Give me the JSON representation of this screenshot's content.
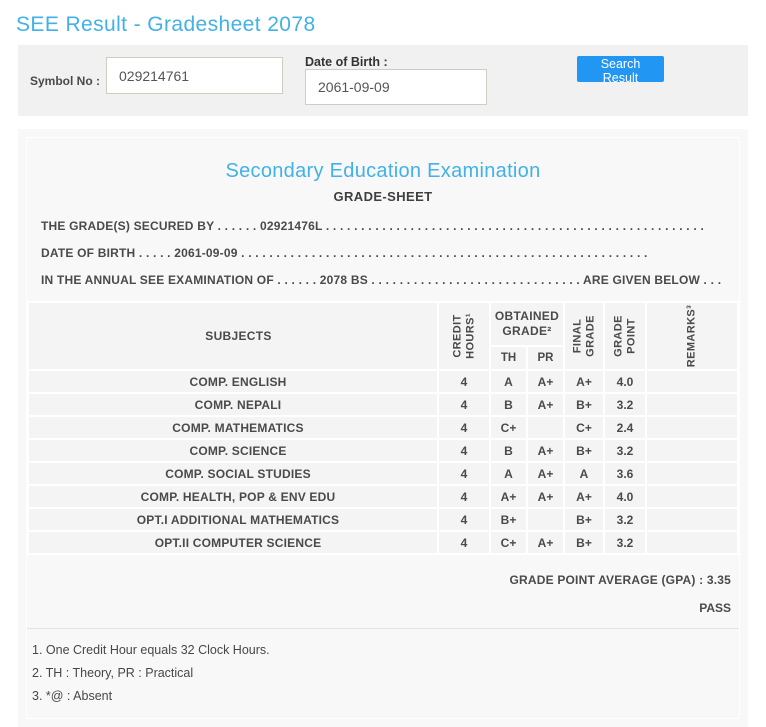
{
  "page_title": "SEE Result - Gradesheet 2078",
  "colors": {
    "accent_blue": "#41b1e8",
    "button_blue": "#2196f3"
  },
  "search_form": {
    "symbol_label": "Symbol No :",
    "symbol_value": "029214761",
    "dob_label": "Date of Birth :",
    "dob_value": "2061-09-09",
    "search_button_label": "Search Result"
  },
  "gradesheet": {
    "heading": "Secondary Education Examination",
    "subheading": "GRADE-SHEET",
    "intro_lines": {
      "secured_by": "THE GRADE(S) SECURED BY . . . . . . 02921476L . . . . . . . . . . . . . . . . . . . . . . . . . . . . . . . . . . . . . . . . . . . . . . . . . . . . . .",
      "date_of_birth": "DATE OF BIRTH . . . . . 2061-09-09 . . . . . . . . . . . . . . . . . . . . . . . . . . . . . . . . . . . . . . . . . . . . . . . . . . . . . . . . . .",
      "examination": "IN THE ANNUAL SEE EXAMINATION OF . . . . . . 2078 BS . . . . . . . . . . . . . . . . . . . . . . . . . . . . . . ARE GIVEN BELOW . . ."
    },
    "table": {
      "headers": {
        "subjects": "SUBJECTS",
        "credit_hours": "CREDIT\nHOURS¹",
        "obtained_grade": "OBTAINED\nGRADE²",
        "th": "TH",
        "pr": "PR",
        "final_grade": "FINAL\nGRADE",
        "grade_point": "GRADE\nPOINT",
        "remarks": "REMARKS³"
      },
      "rows": [
        {
          "subject": "COMP. ENGLISH",
          "credit": "4",
          "th": "A",
          "pr": "A+",
          "final": "A+",
          "gp": "4.0",
          "remarks": ""
        },
        {
          "subject": "COMP. NEPALI",
          "credit": "4",
          "th": "B",
          "pr": "A+",
          "final": "B+",
          "gp": "3.2",
          "remarks": ""
        },
        {
          "subject": "COMP. MATHEMATICS",
          "credit": "4",
          "th": "C+",
          "pr": "",
          "final": "C+",
          "gp": "2.4",
          "remarks": ""
        },
        {
          "subject": "COMP. SCIENCE",
          "credit": "4",
          "th": "B",
          "pr": "A+",
          "final": "B+",
          "gp": "3.2",
          "remarks": ""
        },
        {
          "subject": "COMP. SOCIAL STUDIES",
          "credit": "4",
          "th": "A",
          "pr": "A+",
          "final": "A",
          "gp": "3.6",
          "remarks": ""
        },
        {
          "subject": "COMP. HEALTH, POP & ENV EDU",
          "credit": "4",
          "th": "A+",
          "pr": "A+",
          "final": "A+",
          "gp": "4.0",
          "remarks": ""
        },
        {
          "subject": "OPT.I ADDITIONAL MATHEMATICS",
          "credit": "4",
          "th": "B+",
          "pr": "",
          "final": "B+",
          "gp": "3.2",
          "remarks": ""
        },
        {
          "subject": "OPT.II COMPUTER SCIENCE",
          "credit": "4",
          "th": "C+",
          "pr": "A+",
          "final": "B+",
          "gp": "3.2",
          "remarks": ""
        }
      ]
    },
    "summary": {
      "gpa": "GRADE POINT AVERAGE (GPA) : 3.35",
      "result": "PASS"
    },
    "notes": [
      "1. One Credit Hour equals 32 Clock Hours.",
      "2. TH : Theory, PR : Practical",
      "3. *@ : Absent"
    ]
  }
}
